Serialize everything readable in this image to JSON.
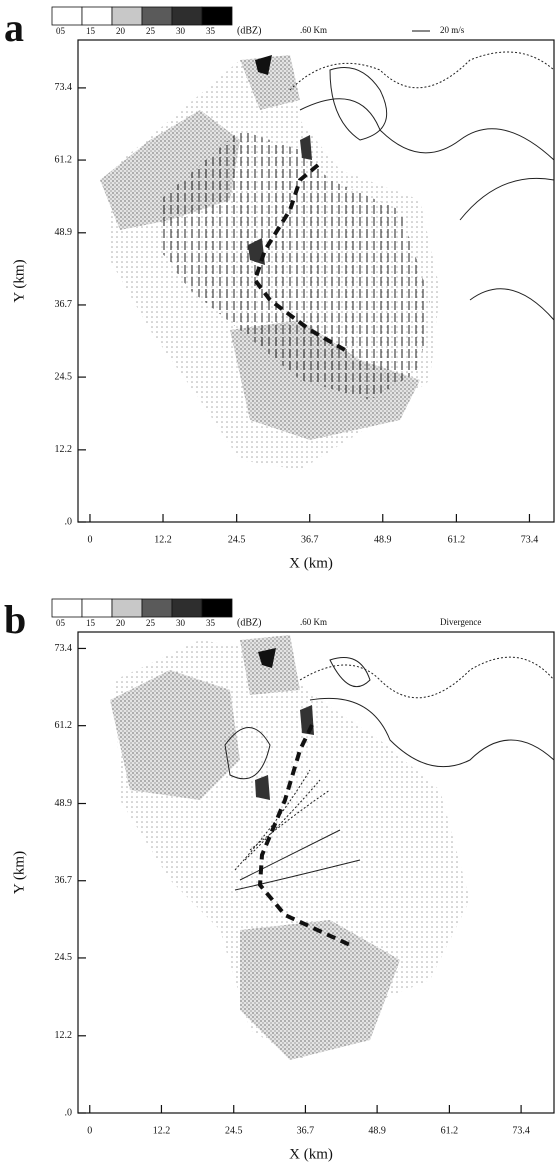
{
  "chart_data": [
    {
      "type": "radar-field",
      "panel_label": "a",
      "xlabel": "X (km)",
      "ylabel": "Y (km)",
      "xlim": [
        -2,
        77.5
      ],
      "ylim": [
        0,
        81.5
      ],
      "xticks": [
        0,
        12.2,
        24.5,
        36.7,
        48.9,
        61.2,
        73.4
      ],
      "yticks": [
        {
          "value": 0,
          "label": ".0"
        },
        12.2,
        24.5,
        36.7,
        48.9,
        61.2,
        73.4
      ],
      "legend": {
        "labels": [
          "05",
          "15",
          "20",
          "25",
          "30",
          "35"
        ],
        "colors": [
          "#ffffff",
          "#ffffff",
          "#c8c8c8",
          "#5a5a5a",
          "#2e2e2e",
          "#000000"
        ],
        "unit": "(dBZ)"
      },
      "annotations": [
        ".60 Km",
        "20 m/s"
      ]
    },
    {
      "type": "radar-field",
      "panel_label": "b",
      "xlabel": "X (km)",
      "ylabel": "Y (km)",
      "xlim": [
        -2,
        79
      ],
      "ylim": [
        0,
        76
      ],
      "xticks": [
        0,
        12.2,
        24.5,
        36.7,
        48.9,
        61.2,
        73.4
      ],
      "yticks": [
        {
          "value": 0,
          "label": ".0"
        },
        12.2,
        24.5,
        36.7,
        48.9,
        61.2,
        73.4
      ],
      "legend": {
        "labels": [
          "05",
          "15",
          "20",
          "25",
          "30",
          "35"
        ],
        "colors": [
          "#ffffff",
          "#ffffff",
          "#c8c8c8",
          "#5a5a5a",
          "#2e2e2e",
          "#000000"
        ],
        "unit": "(dBZ)"
      },
      "annotations": [
        ".60 Km",
        "Divergence"
      ]
    }
  ]
}
